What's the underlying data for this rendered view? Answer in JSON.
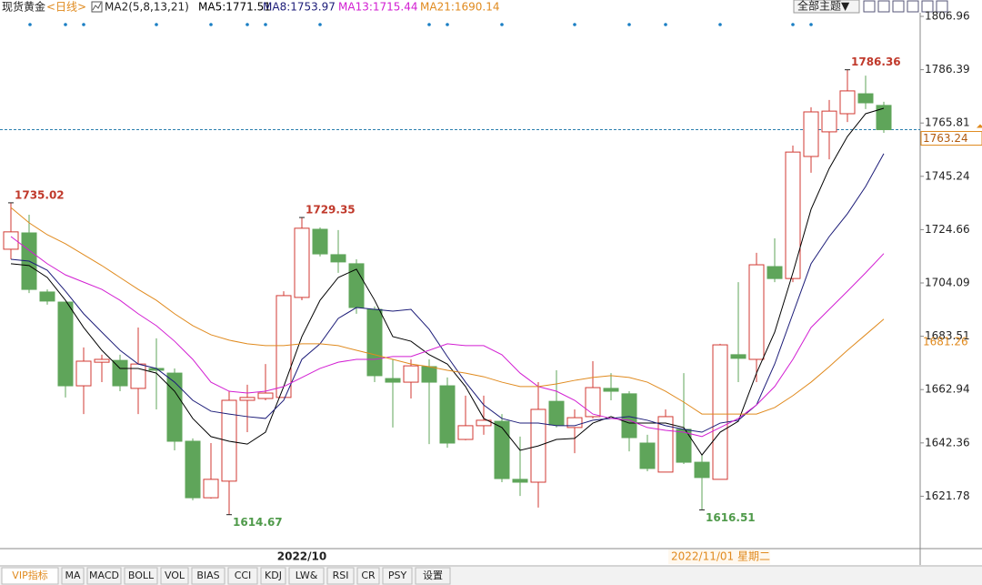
{
  "header": {
    "instrument": "现货黄金",
    "period": "<日线>",
    "indicator": "MA2(5,8,13,21)"
  },
  "toolbar": {
    "theme": "全部主题▼"
  },
  "tabs": [
    "VIP指标",
    "MA",
    "MACD",
    "BOLL",
    "VOL",
    "BIAS",
    "CCI",
    "KDJ",
    "LW&",
    "RSI",
    "CR",
    "PSY",
    "设置"
  ],
  "chart_data": {
    "type": "candlestick",
    "categories": [
      null,
      null,
      null,
      null,
      null,
      null,
      null,
      null,
      null,
      null,
      null,
      null,
      null,
      null,
      null,
      null,
      "2022/10",
      null,
      null,
      null,
      null,
      null,
      null,
      null,
      null,
      null,
      null,
      null,
      null,
      null,
      null,
      null,
      null,
      null,
      null,
      null,
      null,
      "2022/11/01 星期二",
      null,
      null,
      null,
      null,
      null,
      null,
      null,
      null,
      null,
      null,
      null
    ],
    "open": [
      1717.1,
      1723.4,
      1700.6,
      1696.7,
      1664.4,
      1673.5,
      1674.2,
      1663.4,
      1671.1,
      1669.3,
      1643.0,
      1621.2,
      1627.6,
      1658.8,
      1659.5,
      1659.9,
      1698.5,
      1724.8,
      1715.0,
      1711.5,
      1693.9,
      1667.2,
      1665.8,
      1671.8,
      1664.4,
      1643.7,
      1649.0,
      1650.7,
      1628.3,
      1627.2,
      1658.4,
      1648.3,
      1652.5,
      1663.4,
      1661.3,
      1642.3,
      1631.1,
      1647.6,
      1634.9,
      1628.3,
      1676.4,
      1674.6,
      1710.4,
      1705.8,
      1752.9,
      1762.4,
      1769.4,
      1777.1,
      1772.6
    ],
    "high": [
      1735.02,
      1730.4,
      1701.6,
      1696.7,
      1679.2,
      1676.4,
      1676.4,
      1686.9,
      1682.7,
      1671.1,
      1644.1,
      1642.3,
      1662.3,
      1664.8,
      1672.8,
      1700.9,
      1729.35,
      1725.5,
      1724.5,
      1713.2,
      1695.0,
      1674.6,
      1674.6,
      1674.6,
      1667.6,
      1660.6,
      1660.6,
      1653.5,
      1644.8,
      1665.8,
      1670.4,
      1655.3,
      1673.9,
      1669.3,
      1662.3,
      1645.5,
      1655.3,
      1669.3,
      1637.7,
      1680.6,
      1704.4,
      1715.7,
      1721.3,
      1757.1,
      1771.9,
      1774.7,
      1786.36,
      1784.1,
      1774.0
    ],
    "low": [
      1713.2,
      1700.2,
      1695.7,
      1659.9,
      1653.5,
      1665.8,
      1662.3,
      1653.5,
      1655.3,
      1639.5,
      1620.2,
      1620.9,
      1614.67,
      1646.5,
      1658.8,
      1659.9,
      1697.4,
      1714.3,
      1708.0,
      1692.2,
      1665.8,
      1648.3,
      1659.5,
      1641.9,
      1640.5,
      1643.4,
      1645.5,
      1627.2,
      1621.9,
      1617.4,
      1648.3,
      1638.4,
      1651.8,
      1658.8,
      1639.1,
      1631.4,
      1631.1,
      1634.2,
      1616.51,
      1628.3,
      1665.8,
      1665.8,
      1704.4,
      1704.4,
      1746.6,
      1751.8,
      1766.2,
      1771.2,
      1762.0
    ],
    "close": [
      1723.8,
      1701.6,
      1697.1,
      1664.4,
      1673.9,
      1674.6,
      1664.4,
      1672.8,
      1670.4,
      1643.0,
      1621.2,
      1628.3,
      1658.8,
      1659.9,
      1661.6,
      1699.2,
      1725.2,
      1715.3,
      1712.2,
      1694.6,
      1668.3,
      1665.8,
      1672.1,
      1665.8,
      1642.3,
      1649.0,
      1651.1,
      1628.6,
      1627.2,
      1655.3,
      1649.3,
      1652.1,
      1663.7,
      1662.3,
      1644.4,
      1632.5,
      1652.5,
      1634.9,
      1629.0,
      1680.2,
      1675.0,
      1711.1,
      1705.8,
      1754.6,
      1770.1,
      1770.4,
      1778.2,
      1773.6,
      1763.24
    ],
    "up_color": "#d23a33",
    "down_color": "#5fa55a",
    "series": [
      {
        "name": "MA5:1771.51",
        "color": "#000000",
        "values": [
          1711.5,
          1710.8,
          1706.2,
          1697.4,
          1686.9,
          1678.1,
          1671.1,
          1671.1,
          1669.3,
          1662.3,
          1651.8,
          1644.8,
          1643.0,
          1641.9,
          1646.5,
          1664.1,
          1683.4,
          1697.4,
          1706.2,
          1709.4,
          1697.4,
          1683.4,
          1681.6,
          1676.4,
          1672.8,
          1664.1,
          1651.8,
          1648.3,
          1639.5,
          1641.2,
          1643.7,
          1644.1,
          1650.0,
          1652.5,
          1650.0,
          1650.0,
          1650.0,
          1648.3,
          1637.7,
          1646.5,
          1650.7,
          1669.3,
          1685.1,
          1708.0,
          1732.5,
          1748.3,
          1760.6,
          1769.4,
          1771.51
        ]
      },
      {
        "name": "MA8:1753.97",
        "color": "#1c1c78",
        "values": [
          1713.2,
          1712.5,
          1709.0,
          1700.9,
          1692.2,
          1685.1,
          1678.1,
          1672.8,
          1671.1,
          1665.8,
          1658.8,
          1654.6,
          1653.5,
          1652.5,
          1651.8,
          1658.8,
          1674.6,
          1680.6,
          1690.4,
          1694.6,
          1693.9,
          1693.2,
          1693.9,
          1686.2,
          1675.7,
          1665.8,
          1657.0,
          1651.8,
          1650.0,
          1650.0,
          1649.0,
          1649.0,
          1651.1,
          1651.8,
          1652.5,
          1651.1,
          1649.0,
          1647.6,
          1646.5,
          1650.0,
          1651.1,
          1657.0,
          1672.8,
          1692.2,
          1711.5,
          1722.0,
          1730.8,
          1741.3,
          1753.97
        ]
      },
      {
        "name": "MA13:1715.44",
        "color": "#d21ed2",
        "values": [
          1722.0,
          1716.7,
          1711.5,
          1707.2,
          1704.4,
          1701.6,
          1697.4,
          1692.2,
          1687.6,
          1681.6,
          1674.6,
          1665.8,
          1662.3,
          1661.6,
          1662.3,
          1664.1,
          1667.6,
          1671.1,
          1673.5,
          1674.6,
          1674.6,
          1675.7,
          1675.7,
          1678.1,
          1680.6,
          1679.9,
          1679.9,
          1676.4,
          1669.3,
          1664.1,
          1662.3,
          1658.8,
          1653.5,
          1651.8,
          1651.1,
          1648.3,
          1647.2,
          1646.5,
          1644.8,
          1648.3,
          1651.8,
          1657.0,
          1664.1,
          1674.6,
          1686.9,
          1693.9,
          1700.9,
          1708.0,
          1715.44
        ]
      },
      {
        "name": "MA21:1690.14",
        "color": "#e08a1e",
        "values": [
          1733.2,
          1727.3,
          1722.7,
          1719.2,
          1715.0,
          1710.8,
          1706.2,
          1701.6,
          1697.4,
          1692.2,
          1687.6,
          1684.1,
          1682.0,
          1680.6,
          1679.9,
          1679.9,
          1680.6,
          1680.6,
          1679.9,
          1678.1,
          1676.4,
          1674.6,
          1672.8,
          1671.8,
          1670.4,
          1669.3,
          1667.9,
          1665.8,
          1664.1,
          1664.1,
          1665.1,
          1666.5,
          1667.6,
          1668.3,
          1667.6,
          1665.8,
          1662.3,
          1658.1,
          1653.5,
          1653.5,
          1653.5,
          1653.5,
          1656.0,
          1660.6,
          1665.8,
          1671.8,
          1678.1,
          1684.1,
          1690.14
        ]
      }
    ],
    "last_price": 1763.24,
    "price_markers": [
      {
        "value": 1681.26,
        "color": "#e08a1e"
      }
    ],
    "ylim": [
      1601.57,
      1813.28
    ],
    "yticks": [
      1806.96,
      1786.39,
      1765.81,
      1745.24,
      1724.66,
      1704.09,
      1683.51,
      1662.94,
      1642.36,
      1621.78
    ],
    "grid": false
  }
}
